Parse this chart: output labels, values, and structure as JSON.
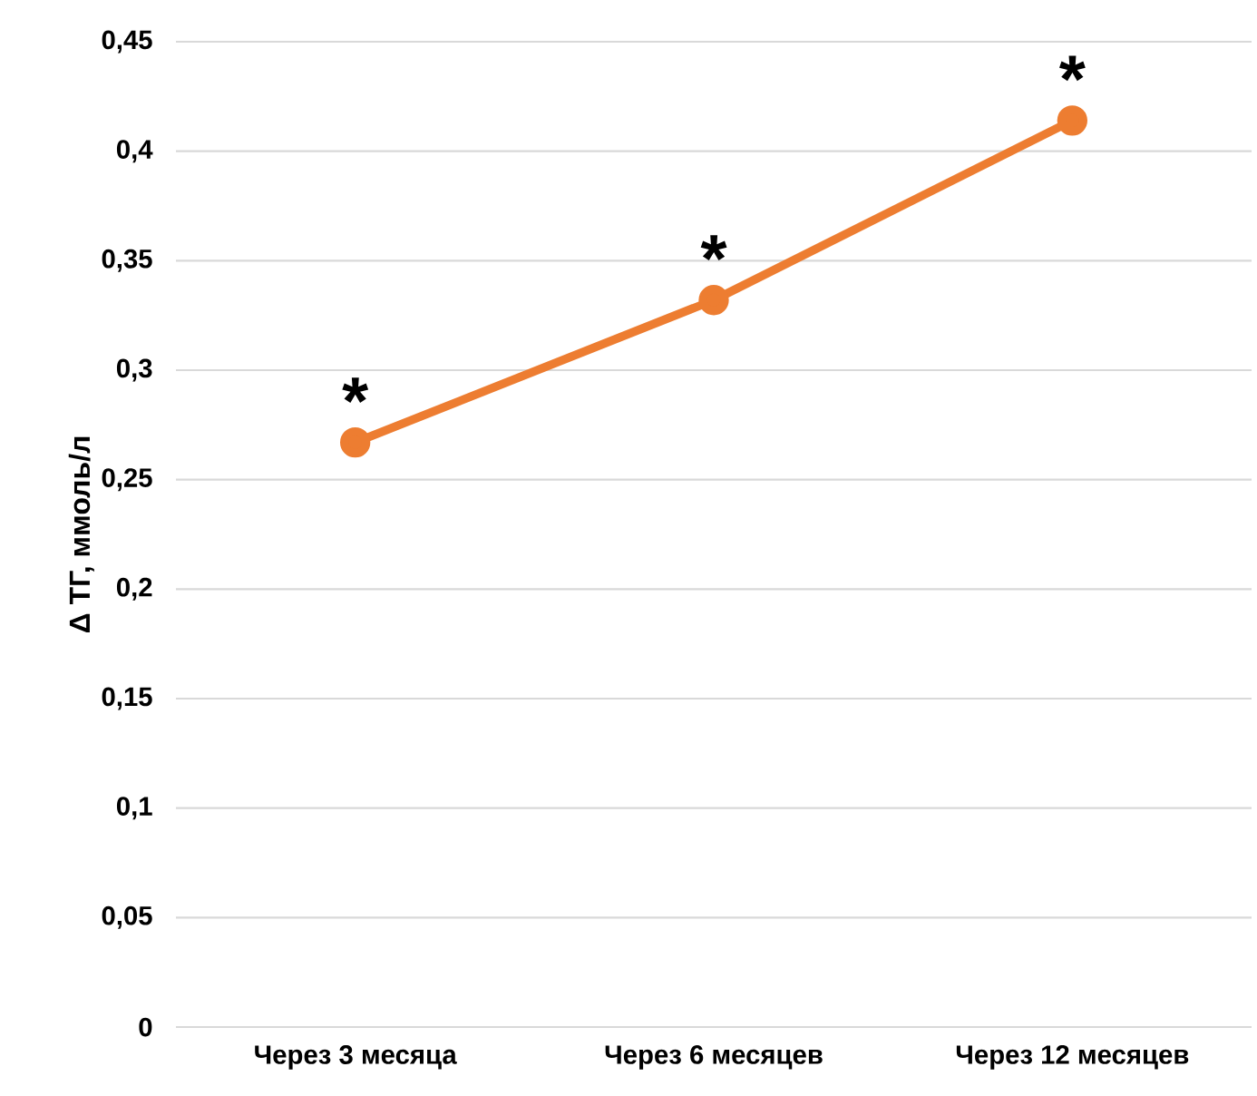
{
  "chart_data": {
    "type": "line",
    "ylabel": "Δ ТГ, ммоль/л",
    "categories": [
      "Через 3 месяца",
      "Через 6 месяцев",
      "Через 12 месяцев"
    ],
    "series": [
      {
        "color": "#ed7d31",
        "values": [
          0.267,
          0.332,
          0.414
        ]
      }
    ],
    "ylim": [
      0,
      0.45
    ],
    "yticks": [
      0,
      {
        "value": 0.05,
        "label": "0,05"
      },
      {
        "value": 0.1,
        "label": "0,1"
      },
      {
        "value": 0.15,
        "label": "0,15"
      },
      {
        "value": 0.2,
        "label": "0,2"
      },
      {
        "value": 0.25,
        "label": "0,25"
      },
      {
        "value": 0.3,
        "label": "0,3"
      },
      {
        "value": 0.35,
        "label": "0,35"
      },
      {
        "value": 0.4,
        "label": "0,4"
      },
      {
        "value": 0.45,
        "label": "0,45"
      }
    ],
    "grid": "y",
    "marker": "circle",
    "line_style": "solid",
    "annotations": [
      {
        "text": "*",
        "x": "Через 3 месяца",
        "y": 0.267
      },
      {
        "text": "*",
        "x": "Через 6 месяцев",
        "y": 0.332
      },
      {
        "text": "*",
        "x": "Через 12 месяцев",
        "y": 0.414
      }
    ]
  }
}
